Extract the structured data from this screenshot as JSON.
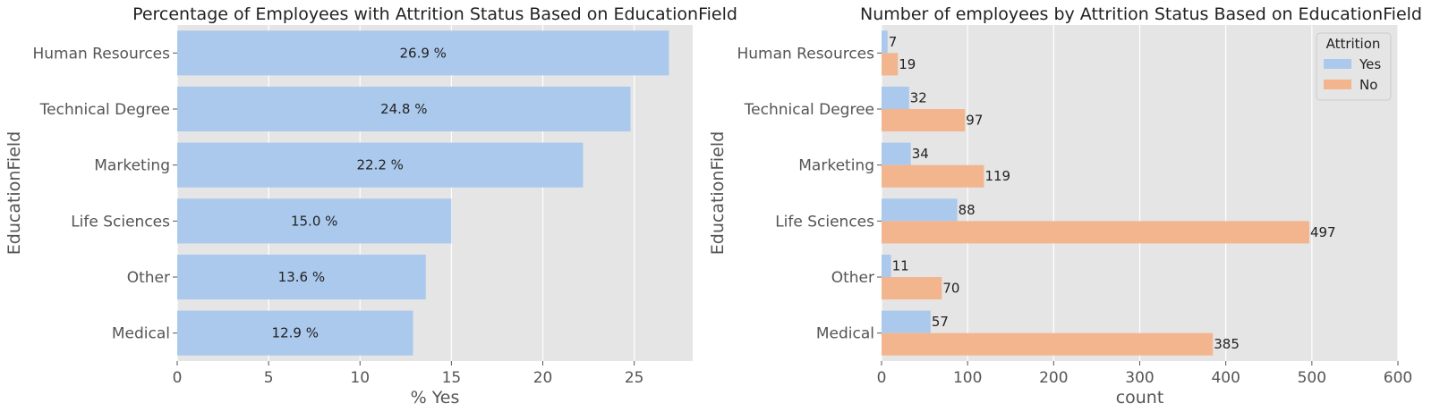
{
  "chart_data": [
    {
      "type": "bar",
      "orientation": "horizontal",
      "title": "Percentage of Employees with Attrition Status Based on EducationField",
      "xlabel": "% Yes",
      "ylabel": "EducationField",
      "categories": [
        "Human Resources",
        "Technical Degree",
        "Marketing",
        "Life Sciences",
        "Other",
        "Medical"
      ],
      "values": [
        26.9,
        24.8,
        22.2,
        15.0,
        13.6,
        12.9
      ],
      "data_labels": [
        "26.9 %",
        "24.8 %",
        "22.2 %",
        "15.0 %",
        "13.6 %",
        "12.9 %"
      ],
      "xlim": [
        0,
        28.2
      ],
      "xticks": [
        0,
        5,
        10,
        15,
        20,
        25
      ],
      "grid": true,
      "bar_color": "#abc9ed"
    },
    {
      "type": "bar",
      "orientation": "horizontal",
      "title": "Number of employees by Attrition Status Based on EducationField",
      "xlabel": "count",
      "ylabel": "EducationField",
      "categories": [
        "Human Resources",
        "Technical Degree",
        "Marketing",
        "Life Sciences",
        "Other",
        "Medical"
      ],
      "series": [
        {
          "name": "Yes",
          "values": [
            7,
            32,
            34,
            88,
            11,
            57
          ],
          "color": "#abc9ed"
        },
        {
          "name": "No",
          "values": [
            19,
            97,
            119,
            497,
            70,
            385
          ],
          "color": "#f3b58e"
        }
      ],
      "xlim": [
        0,
        600
      ],
      "xticks": [
        0,
        100,
        200,
        300,
        400,
        500,
        600
      ],
      "grid": true,
      "legend": {
        "title": "Attrition",
        "placement": "top-right"
      }
    }
  ],
  "colors": {
    "panel_background": "#e5e5e5",
    "grid": "#ffffff",
    "tick_label": "#555555",
    "text": "#222222"
  }
}
